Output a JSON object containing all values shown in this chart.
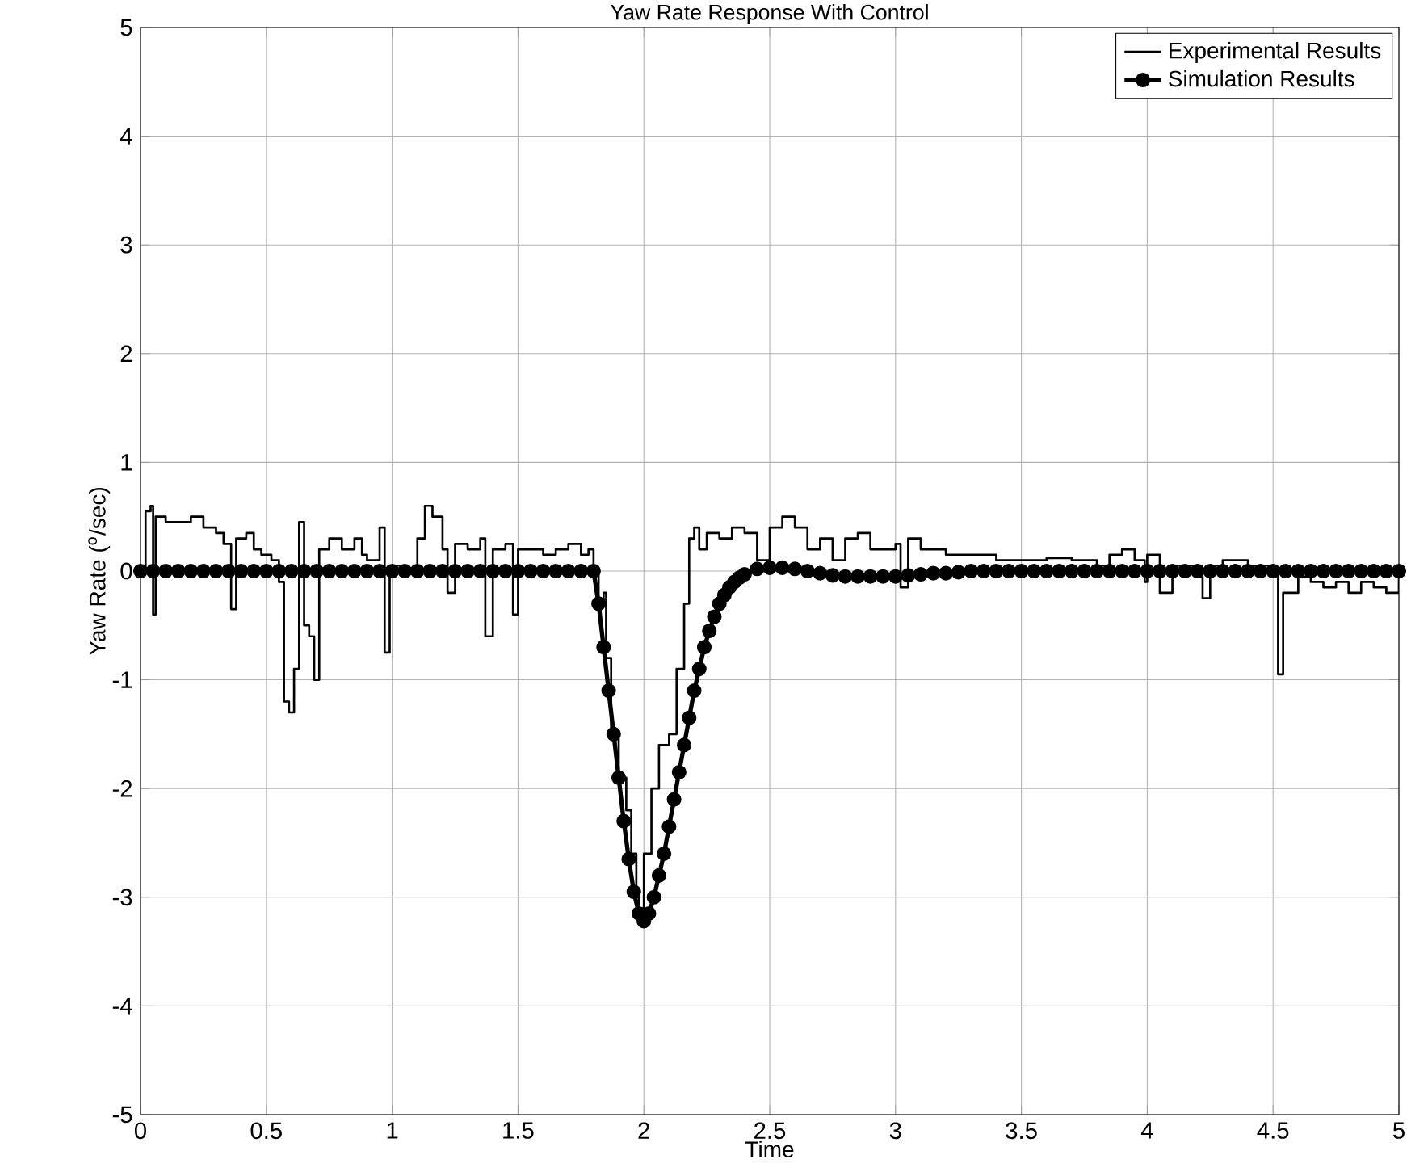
{
  "chart_data": {
    "type": "line",
    "title": "Yaw Rate Response With Control",
    "xlabel": "Time",
    "ylabel": "Yaw Rate ($^{o}$/sec)",
    "xlim": [
      0,
      5
    ],
    "ylim": [
      -5,
      5
    ],
    "xticks": [
      0,
      0.5,
      1,
      1.5,
      2,
      2.5,
      3,
      3.5,
      4,
      4.5,
      5
    ],
    "yticks": [
      -5,
      -4,
      -3,
      -2,
      -1,
      0,
      1,
      2,
      3,
      4,
      5
    ],
    "grid": true,
    "legend": "top right",
    "series": [
      {
        "name": "Experimental Results",
        "type": "step",
        "color": "#000000",
        "marker": "none",
        "x": [
          0,
          0.02,
          0.04,
          0.05,
          0.06,
          0.1,
          0.15,
          0.2,
          0.25,
          0.3,
          0.33,
          0.36,
          0.38,
          0.42,
          0.45,
          0.48,
          0.52,
          0.55,
          0.57,
          0.59,
          0.61,
          0.63,
          0.65,
          0.67,
          0.69,
          0.71,
          0.75,
          0.8,
          0.85,
          0.88,
          0.9,
          0.95,
          0.97,
          0.99,
          1.05,
          1.1,
          1.13,
          1.16,
          1.2,
          1.22,
          1.25,
          1.3,
          1.35,
          1.37,
          1.4,
          1.45,
          1.48,
          1.5,
          1.55,
          1.6,
          1.65,
          1.7,
          1.75,
          1.78,
          1.8,
          1.82,
          1.84,
          1.85,
          1.87,
          1.9,
          1.93,
          1.95,
          1.97,
          1.98,
          2.0,
          2.03,
          2.06,
          2.1,
          2.13,
          2.16,
          2.18,
          2.2,
          2.22,
          2.25,
          2.3,
          2.35,
          2.4,
          2.45,
          2.5,
          2.55,
          2.6,
          2.65,
          2.7,
          2.75,
          2.8,
          2.85,
          2.9,
          3.0,
          3.02,
          3.05,
          3.1,
          3.2,
          3.3,
          3.4,
          3.5,
          3.6,
          3.7,
          3.8,
          3.85,
          3.9,
          3.95,
          3.99,
          4.0,
          4.05,
          4.1,
          4.2,
          4.22,
          4.25,
          4.3,
          4.4,
          4.5,
          4.52,
          4.54,
          4.6,
          4.65,
          4.7,
          4.75,
          4.8,
          4.85,
          4.9,
          4.95,
          5.0
        ],
        "values": [
          0,
          0.55,
          0.6,
          -0.4,
          0.5,
          0.45,
          0.45,
          0.5,
          0.4,
          0.35,
          0.25,
          -0.35,
          0.3,
          0.35,
          0.2,
          0.15,
          0.1,
          -0.1,
          -1.2,
          -1.3,
          -0.9,
          0.45,
          -0.5,
          -0.6,
          -1.0,
          0.2,
          0.3,
          0.2,
          0.3,
          0.15,
          0.1,
          0.4,
          -0.75,
          0.05,
          0,
          0.3,
          0.6,
          0.5,
          0.2,
          -0.2,
          0.25,
          0.2,
          0.3,
          -0.6,
          0.2,
          0.25,
          -0.4,
          0.2,
          0.2,
          0.15,
          0.2,
          0.25,
          0.15,
          0.2,
          0,
          -0.3,
          -0.2,
          -0.8,
          -1.5,
          -1.9,
          -2.2,
          -2.6,
          -3.0,
          -3.1,
          -2.6,
          -2.0,
          -1.6,
          -1.5,
          -0.9,
          -0.3,
          0.3,
          0.4,
          0.2,
          0.35,
          0.3,
          0.4,
          0.35,
          0.1,
          0.4,
          0.5,
          0.4,
          0.2,
          0.3,
          0.1,
          0.3,
          0.35,
          0.2,
          0.25,
          -0.15,
          0.3,
          0.2,
          0.15,
          0.15,
          0.1,
          0.1,
          0.12,
          0.1,
          0.05,
          0.15,
          0.2,
          0.1,
          -0.1,
          0.15,
          -0.2,
          0.05,
          -0.05,
          -0.25,
          0.05,
          0.1,
          0.05,
          0,
          -0.95,
          -0.2,
          -0.05,
          -0.1,
          -0.15,
          -0.1,
          -0.2,
          -0.1,
          -0.15,
          -0.2,
          -0.05
        ]
      },
      {
        "name": "Simulation Results",
        "color": "#000000",
        "marker": "circle",
        "x": [
          0,
          0.05,
          0.1,
          0.15,
          0.2,
          0.25,
          0.3,
          0.35,
          0.4,
          0.45,
          0.5,
          0.55,
          0.6,
          0.65,
          0.7,
          0.75,
          0.8,
          0.85,
          0.9,
          0.95,
          1.0,
          1.05,
          1.1,
          1.15,
          1.2,
          1.25,
          1.3,
          1.35,
          1.4,
          1.45,
          1.5,
          1.55,
          1.6,
          1.65,
          1.7,
          1.75,
          1.8,
          1.82,
          1.84,
          1.86,
          1.88,
          1.9,
          1.92,
          1.94,
          1.96,
          1.98,
          2.0,
          2.02,
          2.04,
          2.06,
          2.08,
          2.1,
          2.12,
          2.14,
          2.16,
          2.18,
          2.2,
          2.22,
          2.24,
          2.26,
          2.28,
          2.3,
          2.32,
          2.34,
          2.36,
          2.38,
          2.4,
          2.45,
          2.5,
          2.55,
          2.6,
          2.65,
          2.7,
          2.75,
          2.8,
          2.85,
          2.9,
          2.95,
          3.0,
          3.05,
          3.1,
          3.15,
          3.2,
          3.25,
          3.3,
          3.35,
          3.4,
          3.45,
          3.5,
          3.55,
          3.6,
          3.65,
          3.7,
          3.75,
          3.8,
          3.85,
          3.9,
          3.95,
          4.0,
          4.05,
          4.1,
          4.15,
          4.2,
          4.25,
          4.3,
          4.35,
          4.4,
          4.45,
          4.5,
          4.55,
          4.6,
          4.65,
          4.7,
          4.75,
          4.8,
          4.85,
          4.9,
          4.95,
          5.0
        ],
        "values": [
          0,
          0,
          0,
          0,
          0,
          0,
          0,
          0,
          0,
          0,
          0,
          0,
          0,
          0,
          0,
          0,
          0,
          0,
          0,
          0,
          0,
          0,
          0,
          0,
          0,
          0,
          0,
          0,
          0,
          0,
          0,
          0,
          0,
          0,
          0,
          0,
          0,
          -0.3,
          -0.7,
          -1.1,
          -1.5,
          -1.9,
          -2.3,
          -2.65,
          -2.95,
          -3.15,
          -3.22,
          -3.15,
          -3.0,
          -2.8,
          -2.6,
          -2.35,
          -2.1,
          -1.85,
          -1.6,
          -1.35,
          -1.1,
          -0.9,
          -0.7,
          -0.55,
          -0.42,
          -0.3,
          -0.22,
          -0.15,
          -0.1,
          -0.06,
          -0.03,
          0.02,
          0.03,
          0.03,
          0.02,
          0,
          -0.02,
          -0.04,
          -0.05,
          -0.05,
          -0.05,
          -0.05,
          -0.05,
          -0.04,
          -0.03,
          -0.02,
          -0.02,
          -0.01,
          0,
          0,
          0,
          0,
          0,
          0,
          0,
          0,
          0,
          0,
          0,
          0,
          0,
          0,
          0,
          0,
          0,
          0,
          0,
          0,
          0,
          0,
          0,
          0,
          0,
          0,
          0,
          0,
          0,
          0,
          0,
          0,
          0,
          0,
          0
        ]
      }
    ]
  }
}
